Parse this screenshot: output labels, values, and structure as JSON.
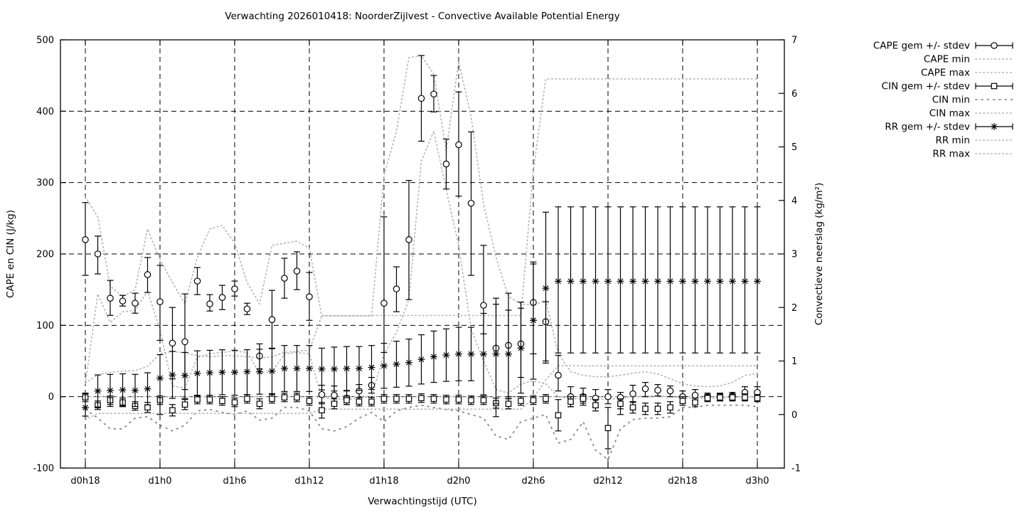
{
  "title": "Verwachting 2026010418: NoorderZijlvest - Convective Available Potential Energy",
  "colors": {
    "line": "#000000",
    "dots_light": "#b4b4b4",
    "dots_sparse": "#8a8a8a",
    "background": "#ffffff"
  },
  "legend": [
    {
      "label": "CAPE gem +/- stdev",
      "type": "errorbar",
      "marker": "circle"
    },
    {
      "label": "CAPE min",
      "type": "dots-light"
    },
    {
      "label": "CAPE max",
      "type": "dots-light"
    },
    {
      "label": "CIN gem +/- stdev",
      "type": "errorbar",
      "marker": "square"
    },
    {
      "label": "CIN min",
      "type": "dots-sparse"
    },
    {
      "label": "CIN max",
      "type": "dots-light"
    },
    {
      "label": "RR gem +/- stdev",
      "type": "errorbar",
      "marker": "asterisk"
    },
    {
      "label": "RR min",
      "type": "dots-light"
    },
    {
      "label": "RR max",
      "type": "dots-light"
    }
  ],
  "chart_data": {
    "type": "errorbar-line",
    "title": "Verwachting 2026010418: NoorderZijlvest - Convective Available Potential Energy",
    "xlabel": "Verwachtingstijd (UTC)",
    "ylabel": "CAPE en CIN (J/kg)",
    "y2label": "Convectieve neerslag (kg/m²)",
    "x_hours": 54,
    "x_tick_labels": [
      "d0h18",
      "d1h0",
      "d1h6",
      "d1h12",
      "d1h18",
      "d2h0",
      "d2h6",
      "d2h12",
      "d2h18",
      "d3h0"
    ],
    "y_ticks": [
      500,
      400,
      300,
      200,
      100,
      0,
      -100
    ],
    "ylim": [
      -100,
      500
    ],
    "y2_ticks": [
      7,
      6,
      5,
      4,
      3,
      2,
      1,
      0,
      -1
    ],
    "y2lim": [
      -1,
      7
    ],
    "grid": true,
    "legend_position": "outside-top-right",
    "series": [
      {
        "name": "CAPE gem +/- stdev",
        "axis": "left",
        "style": "errorbar",
        "marker": "circle",
        "mean": [
          220,
          200,
          138,
          134,
          131,
          171,
          133,
          75,
          77,
          162,
          130,
          139,
          151,
          123,
          57,
          108,
          166,
          176,
          140,
          3,
          2,
          -2,
          8,
          16,
          131,
          151,
          220,
          418,
          424,
          326,
          353,
          271,
          128,
          68,
          72,
          74,
          132,
          105,
          30,
          0,
          0,
          -2,
          0,
          -1,
          4,
          11,
          9,
          8,
          0,
          2,
          0,
          0,
          1,
          6,
          6
        ],
        "lo": [
          170,
          172,
          114,
          127,
          117,
          146,
          79,
          25,
          10,
          143,
          120,
          122,
          141,
          115,
          39,
          68,
          138,
          150,
          107,
          -10,
          -8,
          -11,
          -1,
          5,
          62,
          119,
          136,
          358,
          399,
          291,
          281,
          170,
          88,
          -28,
          0,
          27,
          60,
          50,
          8,
          -14,
          -12,
          -14,
          -10,
          -25,
          -8,
          0,
          1,
          0,
          -8,
          -6,
          -5,
          -5,
          -4,
          -2,
          -2
        ],
        "hi": [
          272,
          225,
          163,
          142,
          145,
          195,
          184,
          125,
          144,
          181,
          143,
          156,
          162,
          131,
          74,
          149,
          194,
          203,
          174,
          16,
          15,
          8,
          17,
          27,
          252,
          182,
          303,
          478,
          450,
          361,
          427,
          371,
          212,
          138,
          145,
          124,
          186,
          133,
          58,
          14,
          12,
          10,
          10,
          6,
          16,
          20,
          17,
          15,
          8,
          10,
          5,
          5,
          6,
          14,
          14
        ]
      },
      {
        "name": "CAPE min",
        "axis": "left",
        "style": "dots-light",
        "values": [
          18,
          144,
          104,
          119,
          121,
          148,
          94,
          15,
          12,
          55,
          60,
          62,
          64,
          62,
          33,
          35,
          60,
          62,
          60,
          -2,
          -3,
          -4,
          -2,
          0,
          60,
          90,
          136,
          330,
          372,
          290,
          212,
          95,
          50,
          10,
          5,
          18,
          22,
          18,
          0,
          -3,
          -3,
          -4,
          -3,
          -3,
          0,
          1,
          1,
          0,
          -2,
          -2,
          -2,
          -2,
          -1,
          0,
          0
        ]
      },
      {
        "name": "CAPE max",
        "axis": "left",
        "style": "dots-light",
        "values": [
          280,
          252,
          155,
          140,
          150,
          235,
          192,
          160,
          130,
          195,
          235,
          240,
          215,
          160,
          130,
          212,
          215,
          218,
          208,
          113,
          113,
          113,
          113,
          113,
          310,
          372,
          475,
          478,
          452,
          345,
          470,
          392,
          270,
          195,
          140,
          130,
          128,
          135,
          60,
          35,
          30,
          28,
          28,
          30,
          33,
          35,
          32,
          25,
          18,
          15,
          14,
          15,
          20,
          30,
          32
        ]
      },
      {
        "name": "CIN gem +/- stdev",
        "axis": "left",
        "style": "errorbar",
        "marker": "square",
        "mean": [
          -1,
          -12,
          -5,
          -8,
          -13,
          -15,
          -5,
          -19,
          -11,
          -4,
          -4,
          -6,
          -8,
          -3,
          -10,
          -3,
          -1,
          -1,
          -6,
          -19,
          -10,
          -5,
          -7,
          -7,
          -3,
          -3,
          -3,
          -2,
          -3,
          -4,
          -4,
          -5,
          -5,
          -9,
          -10,
          -6,
          -5,
          -3,
          -26,
          -7,
          -3,
          -12,
          -44,
          -10,
          -15,
          -17,
          -17,
          -15,
          -6,
          -8,
          -2,
          -1,
          -1,
          -1,
          -2
        ],
        "lo": [
          -7,
          -18,
          -11,
          -14,
          -19,
          -22,
          -11,
          -27,
          -18,
          -10,
          -10,
          -12,
          -14,
          -9,
          -17,
          -9,
          -7,
          -7,
          -12,
          -30,
          -17,
          -11,
          -13,
          -13,
          -9,
          -9,
          -9,
          -8,
          -9,
          -10,
          -10,
          -11,
          -11,
          -16,
          -17,
          -12,
          -11,
          -9,
          -48,
          -14,
          -9,
          -20,
          -73,
          -17,
          -23,
          -25,
          -25,
          -23,
          -12,
          -14,
          -7,
          -6,
          -6,
          -6,
          -7
        ],
        "hi": [
          5,
          -6,
          1,
          -2,
          -7,
          -8,
          1,
          -11,
          -4,
          2,
          2,
          0,
          -2,
          3,
          -3,
          3,
          5,
          5,
          0,
          -8,
          -3,
          1,
          -1,
          -1,
          3,
          3,
          3,
          4,
          3,
          2,
          2,
          1,
          1,
          -2,
          -3,
          0,
          1,
          3,
          -4,
          0,
          3,
          -4,
          -15,
          -3,
          -7,
          -9,
          -9,
          -7,
          0,
          -2,
          3,
          4,
          4,
          4,
          3
        ]
      },
      {
        "name": "CIN min",
        "axis": "left",
        "style": "dots-sparse",
        "values": [
          -18,
          -30,
          -45,
          -45,
          -30,
          -28,
          -40,
          -48,
          -40,
          -20,
          -18,
          -22,
          -25,
          -20,
          -33,
          -30,
          -15,
          -15,
          -20,
          -45,
          -48,
          -42,
          -30,
          -22,
          -35,
          -20,
          -15,
          -12,
          -15,
          -18,
          -20,
          -25,
          -30,
          -55,
          -60,
          -35,
          -30,
          -25,
          -65,
          -60,
          -35,
          -75,
          -88,
          -45,
          -32,
          -30,
          -30,
          -28,
          -15,
          -15,
          -12,
          -12,
          -12,
          -12,
          -14
        ]
      },
      {
        "name": "CIN max",
        "axis": "left",
        "style": "dots-light",
        "values": [
          0,
          0,
          0,
          0,
          0,
          0,
          0,
          0,
          0,
          0,
          0,
          0,
          0,
          0,
          0,
          0,
          0,
          0,
          0,
          0,
          0,
          0,
          0,
          0,
          0,
          0,
          0,
          0,
          0,
          0,
          0,
          0,
          0,
          0,
          0,
          0,
          0,
          0,
          0,
          0,
          0,
          0,
          0,
          0,
          0,
          0,
          0,
          0,
          0,
          0,
          0,
          0,
          0,
          0,
          0
        ]
      },
      {
        "name": "RR gem +/- stdev",
        "axis": "right",
        "style": "errorbar",
        "marker": "asterisk",
        "mean": [
          0.13,
          0.44,
          0.45,
          0.46,
          0.45,
          0.48,
          0.68,
          0.74,
          0.73,
          0.77,
          0.78,
          0.79,
          0.79,
          0.8,
          0.8,
          0.81,
          0.86,
          0.86,
          0.86,
          0.85,
          0.85,
          0.86,
          0.86,
          0.88,
          0.91,
          0.94,
          0.97,
          1.03,
          1.08,
          1.11,
          1.13,
          1.13,
          1.13,
          1.13,
          1.13,
          1.24,
          1.76,
          2.36,
          2.49,
          2.49,
          2.49,
          2.49,
          2.49,
          2.49,
          2.49,
          2.49,
          2.49,
          2.49,
          2.49,
          2.49,
          2.49,
          2.49,
          2.49,
          2.49,
          2.49
        ],
        "lo": [
          -0.03,
          0.14,
          0.15,
          0.16,
          0.15,
          0.18,
          0.0,
          0.3,
          0.3,
          0.35,
          0.36,
          0.37,
          0.36,
          0.37,
          0.38,
          0.39,
          0.43,
          0.43,
          0.43,
          0.46,
          0.44,
          0.45,
          0.45,
          0.47,
          0.49,
          0.51,
          0.53,
          0.57,
          0.6,
          0.62,
          0.63,
          0.63,
          0.37,
          0.2,
          0.3,
          0.4,
          0.66,
          0.96,
          1.15,
          1.15,
          1.15,
          1.15,
          1.15,
          1.15,
          1.15,
          1.15,
          1.15,
          1.15,
          1.15,
          1.15,
          1.15,
          1.15,
          1.15,
          1.15,
          1.15
        ],
        "hi": [
          0.39,
          0.74,
          0.75,
          0.76,
          0.75,
          0.78,
          1.12,
          1.18,
          1.16,
          1.19,
          1.2,
          1.21,
          1.2,
          1.21,
          1.22,
          1.23,
          1.29,
          1.29,
          1.29,
          1.24,
          1.26,
          1.27,
          1.27,
          1.29,
          1.33,
          1.37,
          1.41,
          1.49,
          1.56,
          1.6,
          1.63,
          1.63,
          1.89,
          2.06,
          1.95,
          2.1,
          2.85,
          3.78,
          3.88,
          3.88,
          3.88,
          3.88,
          3.88,
          3.88,
          3.88,
          3.88,
          3.88,
          3.88,
          3.88,
          3.88,
          3.88,
          3.88,
          3.88,
          3.88,
          3.88
        ]
      },
      {
        "name": "RR min",
        "axis": "right",
        "style": "dots-light",
        "values": [
          -0.1,
          0.02,
          0.02,
          0.02,
          0.02,
          0.02,
          0.02,
          0.02,
          0.02,
          0.02,
          0.02,
          0.02,
          0.02,
          0.02,
          0.02,
          0.02,
          0.02,
          0.02,
          0.02,
          0.1,
          0.1,
          0.1,
          0.1,
          0.1,
          0.1,
          0.1,
          0.1,
          0.1,
          0.1,
          0.1,
          0.1,
          0.1,
          0.1,
          0.1,
          0.1,
          0.1,
          0.3,
          0.65,
          0.91,
          0.91,
          0.91,
          0.91,
          0.91,
          0.91,
          0.91,
          0.91,
          0.91,
          0.91,
          0.91,
          0.91,
          0.91,
          0.91,
          0.91,
          0.91,
          0.91
        ]
      },
      {
        "name": "RR max",
        "axis": "right",
        "style": "dots-light",
        "values": [
          0.59,
          0.74,
          0.79,
          0.81,
          0.82,
          0.9,
          1.14,
          1.18,
          1.15,
          1.1,
          1.08,
          1.1,
          1.1,
          1.08,
          1.05,
          1.08,
          1.16,
          1.18,
          1.2,
          1.85,
          1.85,
          1.85,
          1.85,
          1.85,
          1.85,
          1.85,
          1.85,
          1.85,
          1.85,
          1.85,
          1.85,
          1.85,
          1.85,
          1.85,
          1.85,
          1.85,
          4.55,
          6.27,
          6.27,
          6.27,
          6.27,
          6.27,
          6.27,
          6.27,
          6.27,
          6.27,
          6.27,
          6.27,
          6.27,
          6.27,
          6.27,
          6.27,
          6.27,
          6.27,
          6.27
        ]
      }
    ]
  }
}
